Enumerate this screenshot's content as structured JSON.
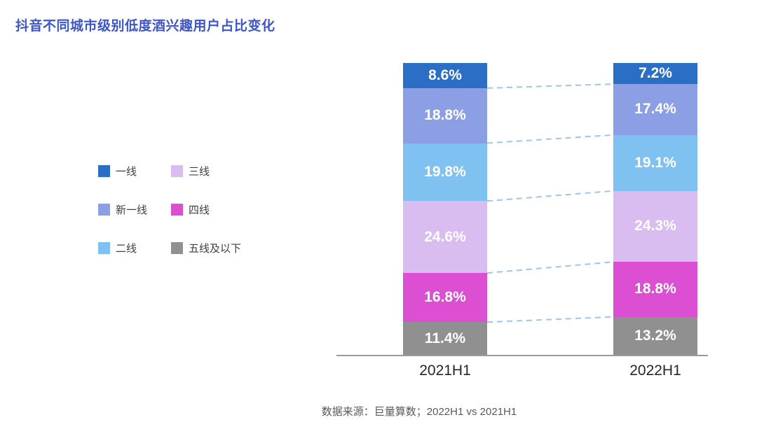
{
  "title": "抖音不同城市级别低度酒兴趣用户占比变化",
  "source_note": "数据来源：巨量算数；2022H1 vs 2021H1",
  "colors": {
    "title": "#3D55C8",
    "segment_label": "#ffffff",
    "dashed_line": "#9FC5EA",
    "axis": "#9a9a9a"
  },
  "chart_data": {
    "type": "bar",
    "subtype": "stacked-percent-column",
    "title": "抖音不同城市级别低度酒兴趣用户占比变化",
    "categories": [
      "2021H1",
      "2022H1"
    ],
    "series": [
      {
        "name": "一线",
        "color": "#2B6EC5",
        "values": [
          8.6,
          7.2
        ]
      },
      {
        "name": "新一线",
        "color": "#8C9EE4",
        "values": [
          18.8,
          17.4
        ]
      },
      {
        "name": "二线",
        "color": "#7FC2F2",
        "values": [
          19.8,
          19.1
        ]
      },
      {
        "name": "三线",
        "color": "#D9BCF0",
        "values": [
          24.6,
          24.3
        ]
      },
      {
        "name": "四线",
        "color": "#DD4FD2",
        "values": [
          16.8,
          18.8
        ]
      },
      {
        "name": "五线及以下",
        "color": "#909090",
        "values": [
          11.4,
          13.2
        ]
      }
    ],
    "value_suffix": "%",
    "ylim": [
      0,
      100
    ],
    "legend_position": "left",
    "stack_order": "top-to-bottom",
    "grid": false,
    "connectors": "dashed lines linking stack boundaries between the two columns"
  }
}
